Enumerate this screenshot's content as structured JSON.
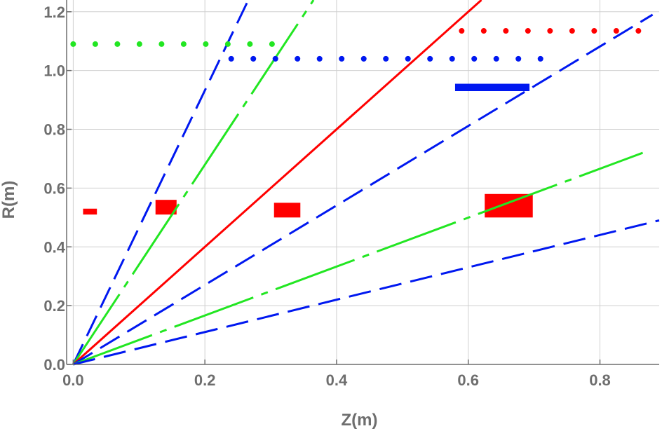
{
  "chart_data": {
    "type": "line",
    "title": "",
    "xlabel": "Z(m)",
    "ylabel": "R(m)",
    "xlim": [
      -0.01,
      0.89
    ],
    "ylim": [
      0.0,
      1.24
    ],
    "grid": true,
    "xticks": [
      0.0,
      0.2,
      0.4,
      0.6,
      0.8
    ],
    "xtick_labels": [
      "0.0",
      "0.2",
      "0.4",
      "0.6",
      "0.8"
    ],
    "yticks": [
      0.0,
      0.2,
      0.4,
      0.6,
      0.8,
      1.0,
      1.2
    ],
    "ytick_labels": [
      "0.0",
      "0.2",
      "0.4",
      "0.6",
      "0.8",
      "1.0",
      "1.2"
    ],
    "colors": {
      "red": "#ff0000",
      "green": "#22e622",
      "blue": "#0018f0",
      "axis": "#6e6e6e",
      "grid": "#cfcfcf"
    },
    "series": [
      {
        "name": "blue-dashed-steep",
        "color": "blue",
        "style": "dashed",
        "x": [
          0.0,
          0.266
        ],
        "y": [
          0.0,
          1.24
        ]
      },
      {
        "name": "green-dashdot-steep",
        "color": "green",
        "style": "dashdot",
        "x": [
          0.0,
          0.365
        ],
        "y": [
          0.0,
          1.24
        ]
      },
      {
        "name": "red-solid",
        "color": "red",
        "style": "solid",
        "x": [
          0.0,
          0.62
        ],
        "y": [
          0.0,
          1.24
        ]
      },
      {
        "name": "blue-dashed-mid",
        "color": "blue",
        "style": "dashed",
        "x": [
          0.0,
          0.88
        ],
        "y": [
          0.0,
          1.19
        ]
      },
      {
        "name": "green-dashdot-shallow",
        "color": "green",
        "style": "dashdot",
        "x": [
          0.0,
          0.865
        ],
        "y": [
          0.0,
          0.72
        ]
      },
      {
        "name": "blue-dashed-shallow",
        "color": "blue",
        "style": "dashed",
        "x": [
          0.0,
          0.89
        ],
        "y": [
          0.0,
          0.49
        ]
      },
      {
        "name": "green-dotted-level",
        "color": "green",
        "style": "dotted",
        "x": [
          0.0,
          0.315
        ],
        "y": [
          1.09,
          1.09
        ]
      },
      {
        "name": "blue-dotted-level",
        "color": "blue",
        "style": "dotted",
        "x": [
          0.24,
          0.735
        ],
        "y": [
          1.04,
          1.04
        ]
      },
      {
        "name": "red-dotted-level",
        "color": "red",
        "style": "dotted",
        "x": [
          0.59,
          0.89
        ],
        "y": [
          1.135,
          1.135
        ]
      }
    ],
    "rectangles": [
      {
        "name": "red-coil-1",
        "color": "red",
        "x": [
          0.015,
          0.036
        ],
        "y": [
          0.51,
          0.53
        ]
      },
      {
        "name": "red-coil-2",
        "color": "red",
        "x": [
          0.125,
          0.157
        ],
        "y": [
          0.51,
          0.56
        ]
      },
      {
        "name": "red-coil-3",
        "color": "red",
        "x": [
          0.305,
          0.345
        ],
        "y": [
          0.5,
          0.55
        ]
      },
      {
        "name": "red-coil-4",
        "color": "red",
        "x": [
          0.625,
          0.698
        ],
        "y": [
          0.5,
          0.58
        ]
      },
      {
        "name": "blue-bar",
        "color": "blue",
        "x": [
          0.58,
          0.693
        ],
        "y": [
          0.93,
          0.955
        ]
      }
    ]
  }
}
